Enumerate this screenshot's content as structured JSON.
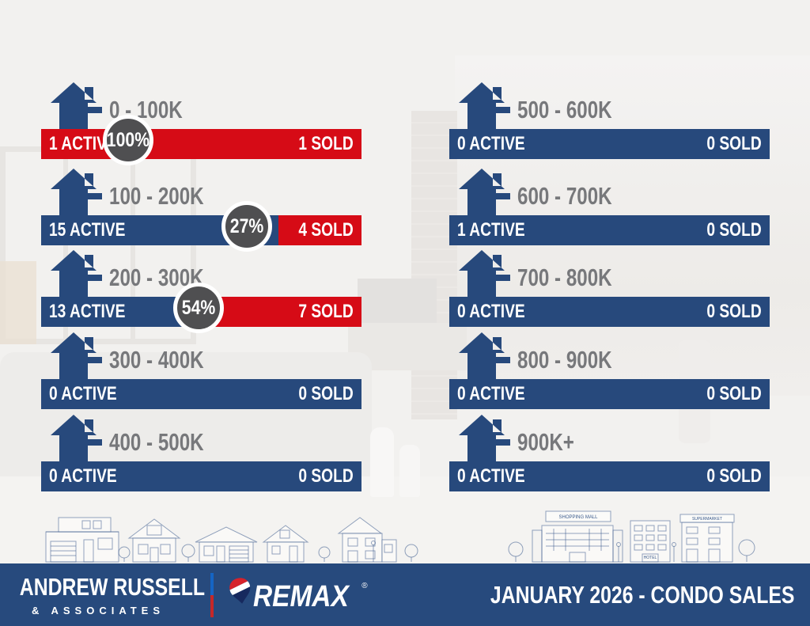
{
  "colors": {
    "bar_blue": "#27497c",
    "bar_red": "#d60b16",
    "badge_gray": "#4f4f51",
    "range_label_gray": "#77787b",
    "footer_bg": "#274a7d",
    "divider_blue": "#1565c4",
    "divider_red": "#c62828",
    "skyline_line": "#3a5a8c",
    "background": "#f2f1ef"
  },
  "chart_data": {
    "type": "bar",
    "title": "JANUARY 2026 -  CONDO SALES",
    "legend_note": "blue segment = active listings, red segment = sold, gray circle = percent sold",
    "left_rows": [
      {
        "range": "0 - 100K",
        "active": 1,
        "sold": 1,
        "active_label": "1 ACTIVE",
        "sold_label": "1 SOLD",
        "pct": 100,
        "pct_label": "100%",
        "red_pct": 100,
        "circle_center_pct": 28.5
      },
      {
        "range": "100 - 200K",
        "active": 15,
        "sold": 4,
        "active_label": "15 ACTIVE",
        "sold_label": "4 SOLD",
        "pct": 27,
        "pct_label": "27%",
        "red_pct": 26,
        "circle_center_pct": 65.5
      },
      {
        "range": "200 - 300K",
        "active": 13,
        "sold": 7,
        "active_label": "13 ACTIVE",
        "sold_label": "7 SOLD",
        "pct": 54,
        "pct_label": "54%",
        "red_pct": 48.5,
        "circle_center_pct": 50.3
      },
      {
        "range": "300 - 400K",
        "active": 0,
        "sold": 0,
        "active_label": "0 ACTIVE",
        "sold_label": "0 SOLD",
        "pct": null,
        "pct_label": null,
        "red_pct": 0,
        "circle_center_pct": null
      },
      {
        "range": "400 - 500K",
        "active": 0,
        "sold": 0,
        "active_label": "0 ACTIVE",
        "sold_label": "0 SOLD",
        "pct": null,
        "pct_label": null,
        "red_pct": 0,
        "circle_center_pct": null
      }
    ],
    "right_rows": [
      {
        "range": "500 - 600K",
        "active": 0,
        "sold": 0,
        "active_label": "0 ACTIVE",
        "sold_label": "0 SOLD",
        "pct": null,
        "pct_label": null,
        "red_pct": 0,
        "circle_center_pct": null
      },
      {
        "range": "600 - 700K",
        "active": 1,
        "sold": 0,
        "active_label": "1 ACTIVE",
        "sold_label": "0 SOLD",
        "pct": null,
        "pct_label": null,
        "red_pct": 0,
        "circle_center_pct": null
      },
      {
        "range": "700 - 800K",
        "active": 0,
        "sold": 0,
        "active_label": "0 ACTIVE",
        "sold_label": "0 SOLD",
        "pct": null,
        "pct_label": null,
        "red_pct": 0,
        "circle_center_pct": null
      },
      {
        "range": "800 - 900K",
        "active": 0,
        "sold": 0,
        "active_label": "0 ACTIVE",
        "sold_label": "0 SOLD",
        "pct": null,
        "pct_label": null,
        "red_pct": 0,
        "circle_center_pct": null
      },
      {
        "range": "900K+",
        "active": 0,
        "sold": 0,
        "active_label": "0 ACTIVE",
        "sold_label": "0 SOLD",
        "pct": null,
        "pct_label": null,
        "red_pct": 0,
        "circle_center_pct": null
      }
    ]
  },
  "footer": {
    "brand_name": "ANDREW RUSSELL",
    "brand_subtitle": "& ASSOCIATES",
    "remax_text": "REMAX",
    "remax_reg": "®",
    "title": "JANUARY 2026 -  CONDO SALES"
  },
  "skyline": {
    "mall_sign": "SHOPPING MALL",
    "hotel_sign": "HOTEL",
    "supermarket_sign": "SUPERMARKET"
  }
}
